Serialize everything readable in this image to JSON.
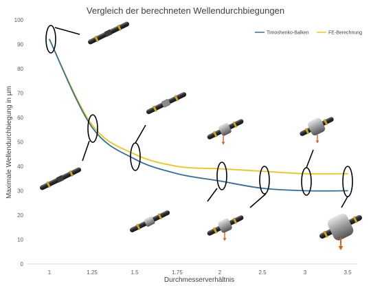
{
  "chart_data": {
    "type": "line",
    "title": "Vergleich der berechneten Wellendurchbiegungen",
    "xlabel": "Durchmesserverhältnis",
    "ylabel": "Maximale Wellendurchbiegung in µm",
    "categories": [
      "1",
      "1.25",
      "1.5",
      "1.75",
      "2",
      "2.5",
      "3",
      "3.5"
    ],
    "ylim": [
      0,
      100
    ],
    "yticks": [
      0,
      10,
      20,
      30,
      40,
      50,
      60,
      70,
      80,
      90,
      100
    ],
    "grid": false,
    "legend_position": "top-right",
    "series": [
      {
        "name": "Timoshenko-Balken",
        "color": "#2e6da4",
        "values": [
          92,
          56,
          43,
          37,
          34,
          31,
          30,
          30
        ]
      },
      {
        "name": "FE-Berechnung",
        "color": "#f2c40f",
        "values": [
          92,
          57,
          45,
          40,
          39,
          38,
          37,
          37
        ]
      }
    ]
  }
}
